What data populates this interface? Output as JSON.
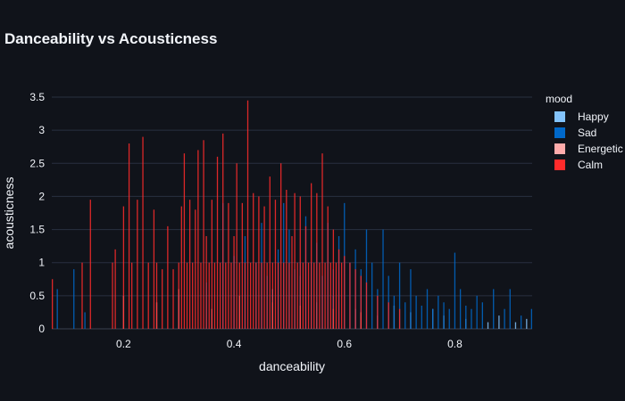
{
  "chart_data": {
    "type": "bar",
    "title": "Danceability vs Acousticness",
    "xlabel": "danceability",
    "ylabel": "acousticness",
    "xlim": [
      0.07,
      0.94
    ],
    "ylim": [
      0,
      3.5
    ],
    "x_ticks": [
      "0.2",
      "0.4",
      "0.6",
      "0.8"
    ],
    "x_tick_values": [
      0.2,
      0.4,
      0.6,
      0.8
    ],
    "y_ticks": [
      "0",
      "0.5",
      "1",
      "1.5",
      "2",
      "2.5",
      "3",
      "3.5"
    ],
    "y_tick_values": [
      0,
      0.5,
      1,
      1.5,
      2,
      2.5,
      3,
      3.5
    ],
    "grid": true,
    "legend_title": "mood",
    "legend_position": "right",
    "series": [
      {
        "name": "Happy",
        "color": "#83c3fb",
        "x": [
          0.47,
          0.52,
          0.55,
          0.58,
          0.62,
          0.66,
          0.69,
          0.72,
          0.76,
          0.78,
          0.82,
          0.86,
          0.88,
          0.91,
          0.93
        ],
        "values": [
          0.6,
          0.8,
          0.4,
          0.5,
          0.3,
          0.2,
          0.35,
          0.25,
          0.3,
          0.2,
          0.15,
          0.1,
          0.2,
          0.1,
          0.15
        ]
      },
      {
        "name": "Sad",
        "color": "#0068c9",
        "x": [
          0.08,
          0.11,
          0.13,
          0.3,
          0.35,
          0.38,
          0.4,
          0.42,
          0.44,
          0.45,
          0.46,
          0.48,
          0.49,
          0.5,
          0.51,
          0.52,
          0.53,
          0.54,
          0.55,
          0.56,
          0.57,
          0.58,
          0.59,
          0.6,
          0.61,
          0.62,
          0.63,
          0.64,
          0.65,
          0.66,
          0.67,
          0.68,
          0.69,
          0.7,
          0.71,
          0.72,
          0.73,
          0.74,
          0.75,
          0.76,
          0.77,
          0.78,
          0.79,
          0.8,
          0.81,
          0.82,
          0.83,
          0.84,
          0.85,
          0.87,
          0.89,
          0.9,
          0.92,
          0.94
        ],
        "values": [
          0.6,
          0.9,
          0.25,
          0.5,
          0.7,
          1.9,
          1.1,
          1.4,
          1.0,
          1.6,
          0.8,
          1.2,
          1.9,
          1.5,
          0.9,
          1.0,
          1.7,
          1.0,
          1.3,
          0.8,
          1.6,
          0.9,
          1.4,
          1.9,
          1.0,
          1.2,
          0.9,
          1.5,
          1.0,
          0.6,
          1.5,
          0.8,
          0.5,
          1.0,
          0.4,
          0.9,
          0.5,
          0.35,
          0.6,
          0.3,
          0.5,
          0.4,
          0.3,
          1.15,
          0.6,
          0.35,
          0.3,
          0.5,
          0.4,
          0.6,
          0.3,
          0.6,
          0.2,
          0.3
        ]
      },
      {
        "name": "Energetic",
        "color": "#ffabab",
        "x": [
          0.2,
          0.26,
          0.3,
          0.36,
          0.41,
          0.47,
          0.52,
          0.58,
          0.63
        ],
        "values": [
          0.5,
          0.4,
          0.6,
          0.3,
          0.5,
          0.4,
          0.35,
          0.3,
          0.25
        ]
      },
      {
        "name": "Calm",
        "color": "#ff2b2b",
        "x": [
          0.07,
          0.125,
          0.14,
          0.18,
          0.185,
          0.2,
          0.21,
          0.215,
          0.225,
          0.235,
          0.245,
          0.255,
          0.26,
          0.27,
          0.28,
          0.29,
          0.3,
          0.305,
          0.31,
          0.315,
          0.32,
          0.325,
          0.33,
          0.335,
          0.34,
          0.345,
          0.35,
          0.355,
          0.36,
          0.365,
          0.37,
          0.375,
          0.38,
          0.385,
          0.39,
          0.395,
          0.4,
          0.405,
          0.41,
          0.415,
          0.42,
          0.425,
          0.43,
          0.435,
          0.44,
          0.445,
          0.45,
          0.455,
          0.46,
          0.465,
          0.47,
          0.475,
          0.48,
          0.485,
          0.49,
          0.495,
          0.5,
          0.505,
          0.51,
          0.515,
          0.52,
          0.525,
          0.53,
          0.535,
          0.54,
          0.545,
          0.55,
          0.555,
          0.56,
          0.565,
          0.57,
          0.575,
          0.58,
          0.585,
          0.59,
          0.595,
          0.6,
          0.61,
          0.62,
          0.63,
          0.64,
          0.66,
          0.68,
          0.7
        ],
        "values": [
          0.75,
          1.0,
          1.95,
          1.0,
          1.2,
          1.85,
          2.8,
          1.0,
          1.95,
          2.9,
          1.0,
          1.8,
          1.0,
          0.9,
          1.55,
          0.9,
          1.0,
          1.85,
          2.65,
          1.0,
          1.95,
          1.0,
          1.8,
          2.7,
          1.0,
          2.85,
          1.4,
          1.0,
          1.95,
          1.0,
          2.6,
          1.0,
          2.95,
          1.0,
          1.9,
          1.0,
          1.4,
          2.5,
          1.0,
          1.9,
          1.0,
          3.45,
          1.0,
          2.05,
          1.0,
          2.0,
          1.0,
          1.85,
          1.0,
          2.3,
          1.0,
          1.95,
          1.0,
          2.5,
          1.0,
          2.1,
          1.0,
          1.4,
          2.05,
          1.0,
          2.0,
          1.0,
          1.55,
          1.0,
          2.2,
          1.0,
          2.05,
          1.0,
          2.65,
          1.0,
          1.85,
          1.0,
          1.5,
          1.0,
          1.2,
          1.0,
          1.1,
          1.0,
          0.9,
          0.8,
          0.7,
          0.5,
          0.4,
          0.3
        ]
      }
    ]
  }
}
